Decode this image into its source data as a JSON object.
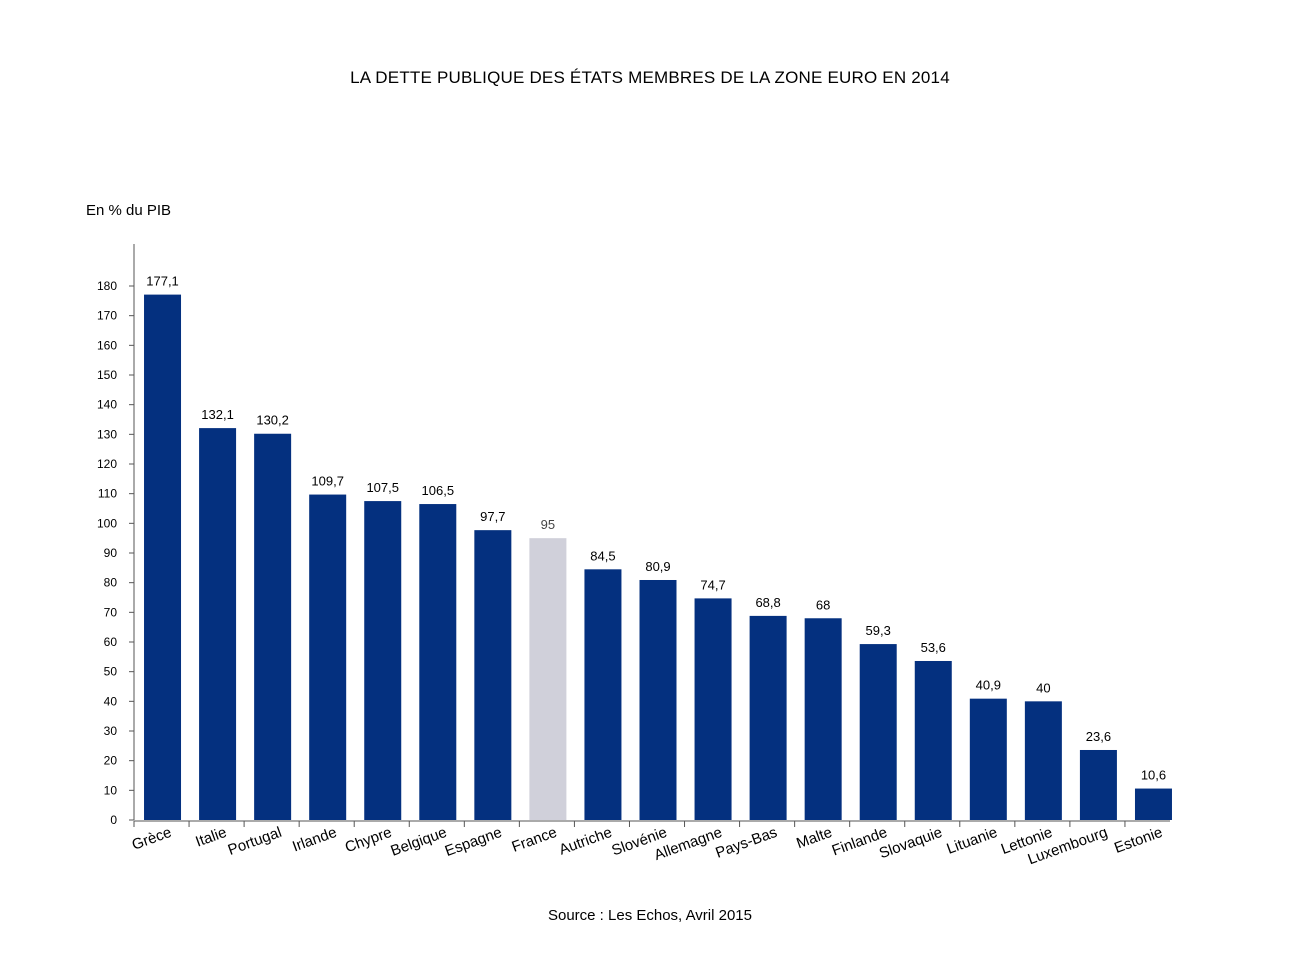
{
  "chart_data": {
    "type": "bar",
    "title": "LA DETTE PUBLIQUE DES ÉTATS MEMBRES DE LA ZONE EURO EN 2014",
    "ylabel": "En % du PIB",
    "xlabel": "",
    "source": "Source : Les Echos, Avril 2015",
    "ylim": [
      0,
      180
    ],
    "yticks": [
      0,
      10,
      20,
      30,
      40,
      50,
      60,
      70,
      80,
      90,
      100,
      110,
      120,
      130,
      140,
      150,
      160,
      170,
      180
    ],
    "categories": [
      "Grèce",
      "Italie",
      "Portugal",
      "Irlande",
      "Chypre",
      "Belgique",
      "Espagne",
      "France",
      "Autriche",
      "Slovénie",
      "Allemagne",
      "Pays-Bas",
      "Malte",
      "Finlande",
      "Slovaquie",
      "Lituanie",
      "Lettonie",
      "Luxembourg",
      "Estonie"
    ],
    "values": [
      177.1,
      132.1,
      130.2,
      109.7,
      107.5,
      106.5,
      97.7,
      95,
      84.5,
      80.9,
      74.7,
      68.8,
      68,
      59.3,
      53.6,
      40.9,
      40,
      23.6,
      10.6
    ],
    "value_labels": [
      "177,1",
      "132,1",
      "130,2",
      "109,7",
      "107,5",
      "106,5",
      "97,7",
      "95",
      "84,5",
      "80,9",
      "74,7",
      "68,8",
      "68",
      "59,3",
      "53,6",
      "40,9",
      "40",
      "23,6",
      "10,6"
    ],
    "highlight_category": "France",
    "grid": false,
    "colors": {
      "bar": "#04307f",
      "highlight": "#d0d0da",
      "axis": "#555555"
    }
  }
}
